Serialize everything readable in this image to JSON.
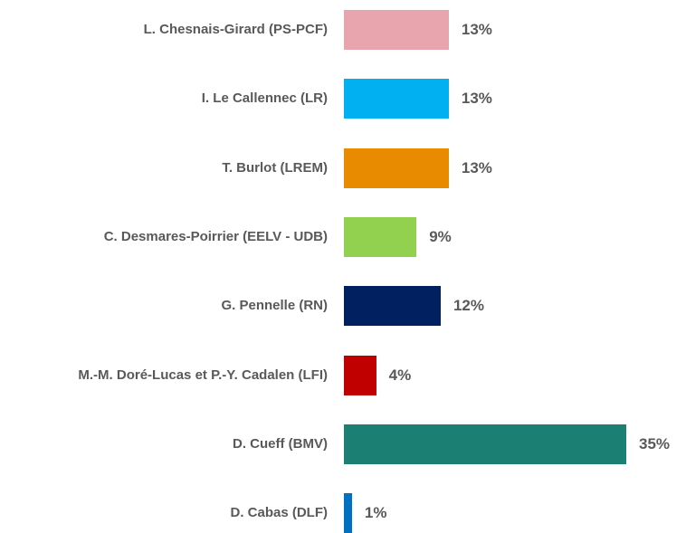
{
  "chart_data": {
    "type": "hbar",
    "categories": [
      "L. Chesnais-Girard (PS-PCF)",
      "I. Le Callennec (LR)",
      "T. Burlot (LREM)",
      "C. Desmares-Poirrier (EELV - UDB)",
      "G. Pennelle (RN)",
      "M.-M. Doré-Lucas et P.-Y. Cadalen (LFI)",
      "D. Cueff (BMV)",
      "D. Cabas (DLF)"
    ],
    "values": [
      13,
      13,
      13,
      9,
      12,
      4,
      35,
      1
    ],
    "value_labels": [
      "13%",
      "13%",
      "13%",
      "9%",
      "12%",
      "4%",
      "35%",
      "1%"
    ],
    "colors": [
      "#e8a5ad",
      "#00b0f0",
      "#e98b00",
      "#92d050",
      "#002060",
      "#c00000",
      "#1b7f74",
      "#0070c0"
    ]
  }
}
